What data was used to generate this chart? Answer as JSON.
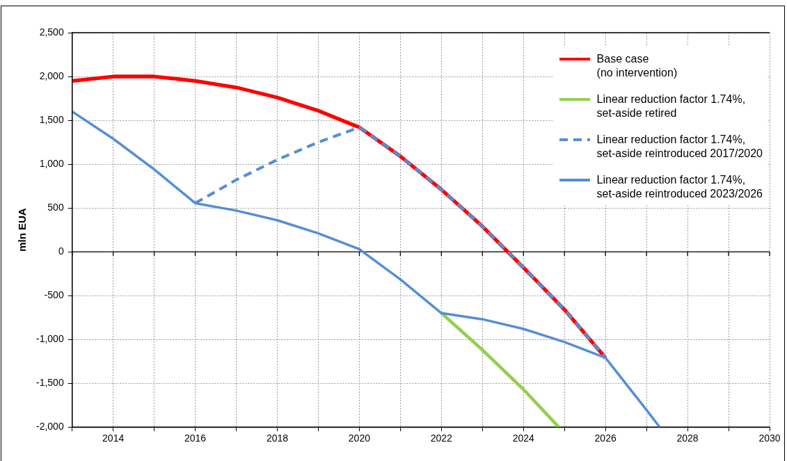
{
  "chart_data": {
    "type": "line",
    "ylabel": "mln EUA",
    "xlim": [
      2013,
      2030
    ],
    "xticks": [
      {
        "value": 2013,
        "label": null
      },
      2014,
      {
        "value": 2015,
        "label": null
      },
      2016,
      {
        "value": 2017,
        "label": null
      },
      2018,
      {
        "value": 2019,
        "label": null
      },
      2020,
      {
        "value": 2021,
        "label": null
      },
      2022,
      {
        "value": 2023,
        "label": null
      },
      2024,
      {
        "value": 2025,
        "label": null
      },
      2026,
      {
        "value": 2027,
        "label": null
      },
      2028,
      {
        "value": 2029,
        "label": null
      },
      2030
    ],
    "ylim": [
      -2000,
      2500
    ],
    "yticks": [
      {
        "value": -2000,
        "label": "-2,000"
      },
      {
        "value": -1500,
        "label": "-1,500"
      },
      {
        "value": -1000,
        "label": "-1,000"
      },
      {
        "value": -500,
        "label": "-500"
      },
      0,
      500,
      {
        "value": 1000,
        "label": "1,000"
      },
      {
        "value": 1500,
        "label": "1,500"
      },
      {
        "value": 2000,
        "label": "2,000"
      },
      {
        "value": 2500,
        "label": "2,500"
      }
    ],
    "grid": true,
    "legend": "top right",
    "marker": "none",
    "series": [
      {
        "name": "Base case\n(no intervention)",
        "color": "#ff0000",
        "line_style": "solid",
        "x": [
          2013,
          2014,
          2015,
          2016,
          2017,
          2018,
          2019,
          2020,
          2021,
          2022,
          2023,
          2024,
          2025,
          2026
        ],
        "values": [
          1950,
          2000,
          2000,
          1950,
          1875,
          1760,
          1610,
          1420,
          1090,
          710,
          290,
          -180,
          -660,
          -1210
        ]
      },
      {
        "name": "Linear reduction factor 1.74%,\nset-aside retired",
        "color": "#92d050",
        "line_style": "solid",
        "x": [
          2022,
          2023,
          2024,
          2024.86
        ],
        "values": [
          -700,
          -1120,
          -1570,
          -2000
        ]
      },
      {
        "name": "Linear reduction factor 1.74%,\nset-aside reintroduced 2017/2020",
        "color": "#558ed5",
        "line_style": "dashed",
        "x": [
          2016,
          2017,
          2018,
          2019,
          2020,
          2021,
          2022,
          2023,
          2024,
          2025,
          2026
        ],
        "values": [
          555,
          820,
          1050,
          1250,
          1420,
          1090,
          710,
          290,
          -180,
          -660,
          -1210
        ]
      },
      {
        "name": "Linear reduction factor 1.74%,\nset-aside reintroduced 2023/2026",
        "color": "#558ed5",
        "line_style": "solid",
        "x": [
          2013,
          2014,
          2015,
          2016,
          2017,
          2018,
          2019,
          2020,
          2021,
          2022,
          2023,
          2024,
          2025,
          2026,
          2027,
          2027.32
        ],
        "values": [
          1600,
          1290,
          940,
          555,
          470,
          360,
          210,
          30,
          -315,
          -700,
          -770,
          -880,
          -1030,
          -1210,
          -1805,
          -2000
        ]
      }
    ]
  }
}
